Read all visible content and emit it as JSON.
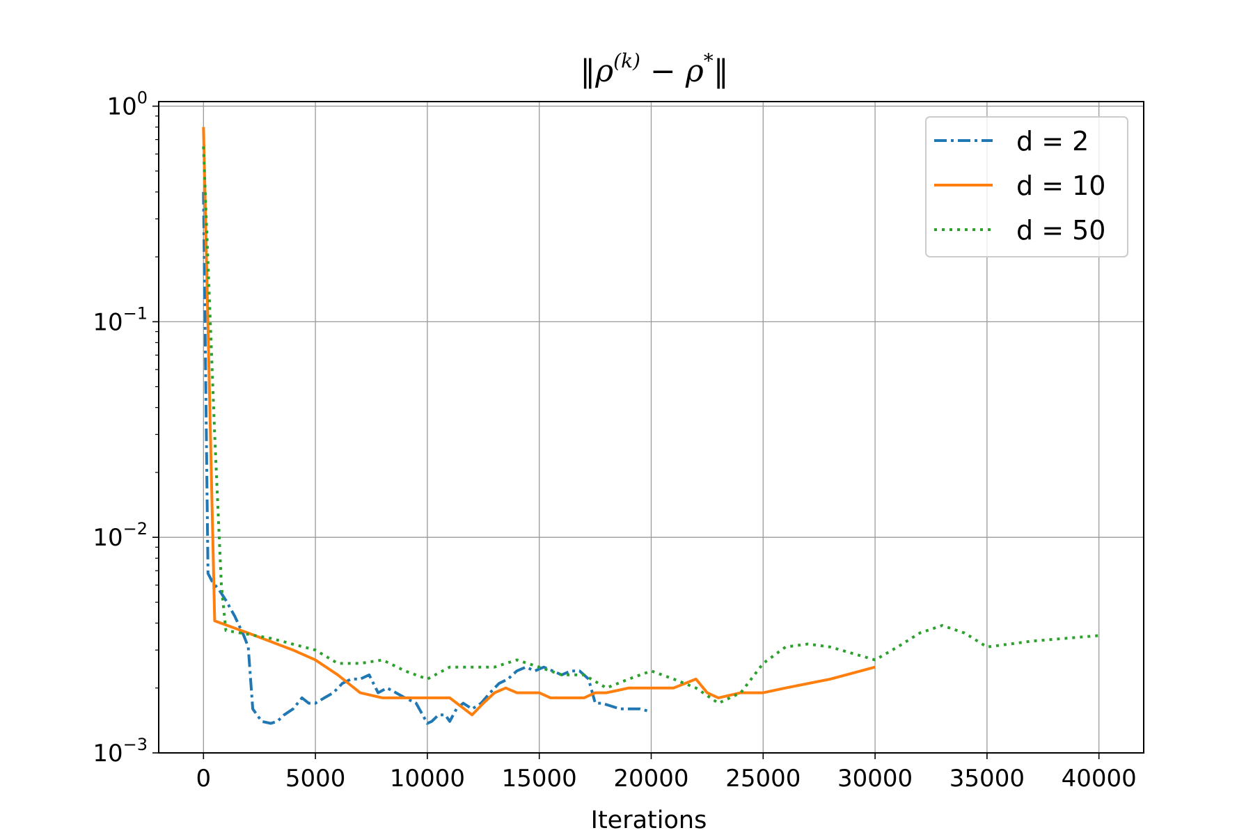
{
  "chart_data": {
    "type": "line",
    "title": "‖ρ(k) − ρ*‖",
    "title_parts": {
      "norm_left": "‖",
      "rho1": "ρ",
      "sup_k": "(k)",
      "minus": " − ",
      "rho2": "ρ",
      "sup_star": "*",
      "norm_right": "‖"
    },
    "xlabel": "Iterations",
    "ylabel": "",
    "xlim": [
      -2000,
      42000
    ],
    "ylim": [
      0.001,
      1.05
    ],
    "yscale": "log",
    "grid": true,
    "legend_position": "upper right",
    "xticks": [
      0,
      5000,
      10000,
      15000,
      20000,
      25000,
      30000,
      35000,
      40000
    ],
    "xtick_labels": [
      "0",
      "5000",
      "10000",
      "15000",
      "20000",
      "25000",
      "30000",
      "35000",
      "40000"
    ],
    "yticks": [
      1,
      0.1,
      0.01,
      0.001
    ],
    "ytick_base": [
      "10",
      "10",
      "10",
      "10"
    ],
    "ytick_exp": [
      "0",
      "−1",
      "−2",
      "−3"
    ],
    "series": [
      {
        "name": "d = 2",
        "color": "#1f77b4",
        "style": "dashdot",
        "x": [
          0,
          200,
          400,
          700,
          1000,
          1400,
          1800,
          2000,
          2200,
          2600,
          3000,
          3300,
          3600,
          4000,
          4400,
          4700,
          5000,
          5400,
          5800,
          6200,
          6600,
          7000,
          7400,
          7800,
          8200,
          8600,
          9000,
          9500,
          10000,
          10200,
          10500,
          10800,
          11000,
          11300,
          11600,
          12000,
          12400,
          12800,
          13200,
          13600,
          14000,
          14400,
          14800,
          15200,
          15600,
          16000,
          16400,
          16800,
          17200,
          17500,
          17800,
          18200,
          18600,
          19000,
          19500,
          20000
        ],
        "y": [
          0.4,
          0.0068,
          0.0062,
          0.0057,
          0.0051,
          0.0043,
          0.0035,
          0.0031,
          0.0016,
          0.0014,
          0.00137,
          0.0014,
          0.0015,
          0.0016,
          0.0018,
          0.0017,
          0.0017,
          0.0018,
          0.0019,
          0.0021,
          0.0022,
          0.0022,
          0.0023,
          0.0019,
          0.002,
          0.0019,
          0.0018,
          0.0017,
          0.00137,
          0.0014,
          0.0015,
          0.0015,
          0.0014,
          0.0016,
          0.0017,
          0.0016,
          0.0017,
          0.0019,
          0.0021,
          0.0022,
          0.0024,
          0.0025,
          0.0024,
          0.0025,
          0.0024,
          0.0023,
          0.0024,
          0.0024,
          0.0022,
          0.0017,
          0.0017,
          0.00165,
          0.0016,
          0.0016,
          0.0016,
          0.00155
        ]
      },
      {
        "name": "d = 10",
        "color": "#ff7f0e",
        "style": "solid",
        "x": [
          0,
          500,
          2000,
          4000,
          5000,
          6000,
          7000,
          8000,
          9000,
          10000,
          11000,
          12000,
          12500,
          13000,
          13500,
          14000,
          14500,
          15000,
          15500,
          16000,
          16500,
          17000,
          17500,
          18000,
          19000,
          20000,
          21000,
          22000,
          22500,
          23000,
          24000,
          25000,
          26000,
          28000,
          30000
        ],
        "y": [
          0.8,
          0.0041,
          0.0036,
          0.003,
          0.0027,
          0.0023,
          0.0019,
          0.0018,
          0.0018,
          0.0018,
          0.0018,
          0.0015,
          0.0017,
          0.0019,
          0.002,
          0.0019,
          0.0019,
          0.0019,
          0.0018,
          0.0018,
          0.0018,
          0.0018,
          0.0019,
          0.0019,
          0.002,
          0.002,
          0.002,
          0.0022,
          0.0019,
          0.0018,
          0.0019,
          0.0019,
          0.002,
          0.0022,
          0.0025
        ]
      },
      {
        "name": "d = 50",
        "color": "#2ca02c",
        "style": "dotted",
        "x": [
          0,
          500,
          800,
          1000,
          3000,
          5000,
          6000,
          7000,
          8000,
          9000,
          10000,
          11000,
          12000,
          13000,
          14000,
          15000,
          16000,
          17000,
          18000,
          19000,
          20000,
          21000,
          22000,
          23000,
          24000,
          25000,
          26000,
          27000,
          28000,
          30000,
          31000,
          32000,
          33000,
          34000,
          35000,
          37000,
          40000
        ],
        "y": [
          0.65,
          0.03,
          0.006,
          0.0037,
          0.0034,
          0.003,
          0.0026,
          0.0026,
          0.0027,
          0.0024,
          0.0022,
          0.0025,
          0.0025,
          0.0025,
          0.0027,
          0.0025,
          0.0023,
          0.0023,
          0.002,
          0.0022,
          0.0024,
          0.0022,
          0.002,
          0.0017,
          0.0019,
          0.0026,
          0.0031,
          0.0032,
          0.0031,
          0.0027,
          0.0031,
          0.0036,
          0.0039,
          0.0036,
          0.0031,
          0.0033,
          0.0035
        ]
      }
    ]
  }
}
